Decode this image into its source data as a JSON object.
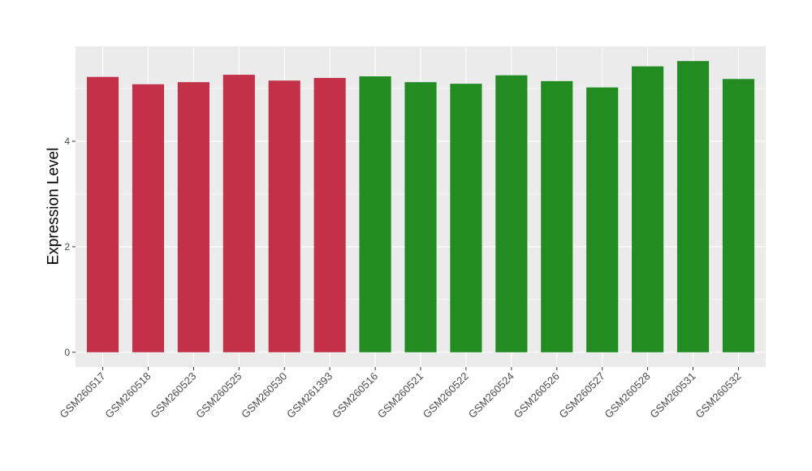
{
  "chart_data": {
    "type": "bar",
    "title": "",
    "xlabel": "",
    "ylabel": "Expression Level",
    "ylim": [
      -0.28,
      5.8
    ],
    "yticks": [
      0,
      2,
      4
    ],
    "grid": true,
    "categories": [
      "GSM260517",
      "GSM260518",
      "GSM260523",
      "GSM260525",
      "GSM260530",
      "GSM261393",
      "GSM260516",
      "GSM260521",
      "GSM260522",
      "GSM260524",
      "GSM260526",
      "GSM260527",
      "GSM260528",
      "GSM260531",
      "GSM260532"
    ],
    "values": [
      5.22,
      5.08,
      5.12,
      5.26,
      5.15,
      5.2,
      5.23,
      5.12,
      5.09,
      5.25,
      5.14,
      5.02,
      5.42,
      5.52,
      5.18
    ],
    "bar_colors": [
      "#C33149",
      "#C33149",
      "#C33149",
      "#C33149",
      "#C33149",
      "#C33149",
      "#228B22",
      "#228B22",
      "#228B22",
      "#228B22",
      "#228B22",
      "#228B22",
      "#228B22",
      "#228B22",
      "#228B22"
    ],
    "panel_background": "#EBEBEB"
  }
}
